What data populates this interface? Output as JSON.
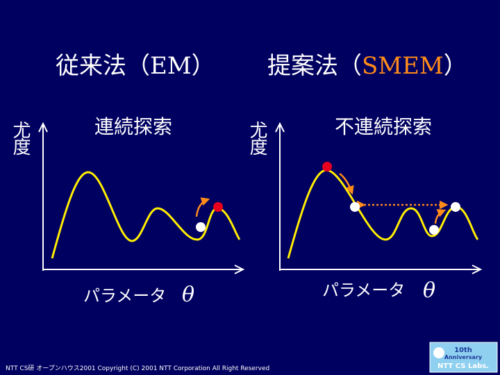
{
  "left": {
    "title_prefix": "従来法（",
    "title_method": "EM",
    "title_suffix": "）",
    "subtitle": "連続探索",
    "y_label": "尤度",
    "x_label": "パラメータ",
    "x_symbol": "θ"
  },
  "right": {
    "title_prefix": "提案法（",
    "title_method": "SMEM",
    "title_suffix": "）",
    "subtitle": "不連続探索",
    "y_label": "尤度",
    "x_label": "パラメータ",
    "x_symbol": "θ"
  },
  "footer": "NTT CS研 オープンハウス2001  Copyright (C) 2001 NTT Corporation All Right  Reserved",
  "logo": {
    "line1": "10th",
    "line2": "Anniversary",
    "line3": "NTT CS Labs."
  }
}
